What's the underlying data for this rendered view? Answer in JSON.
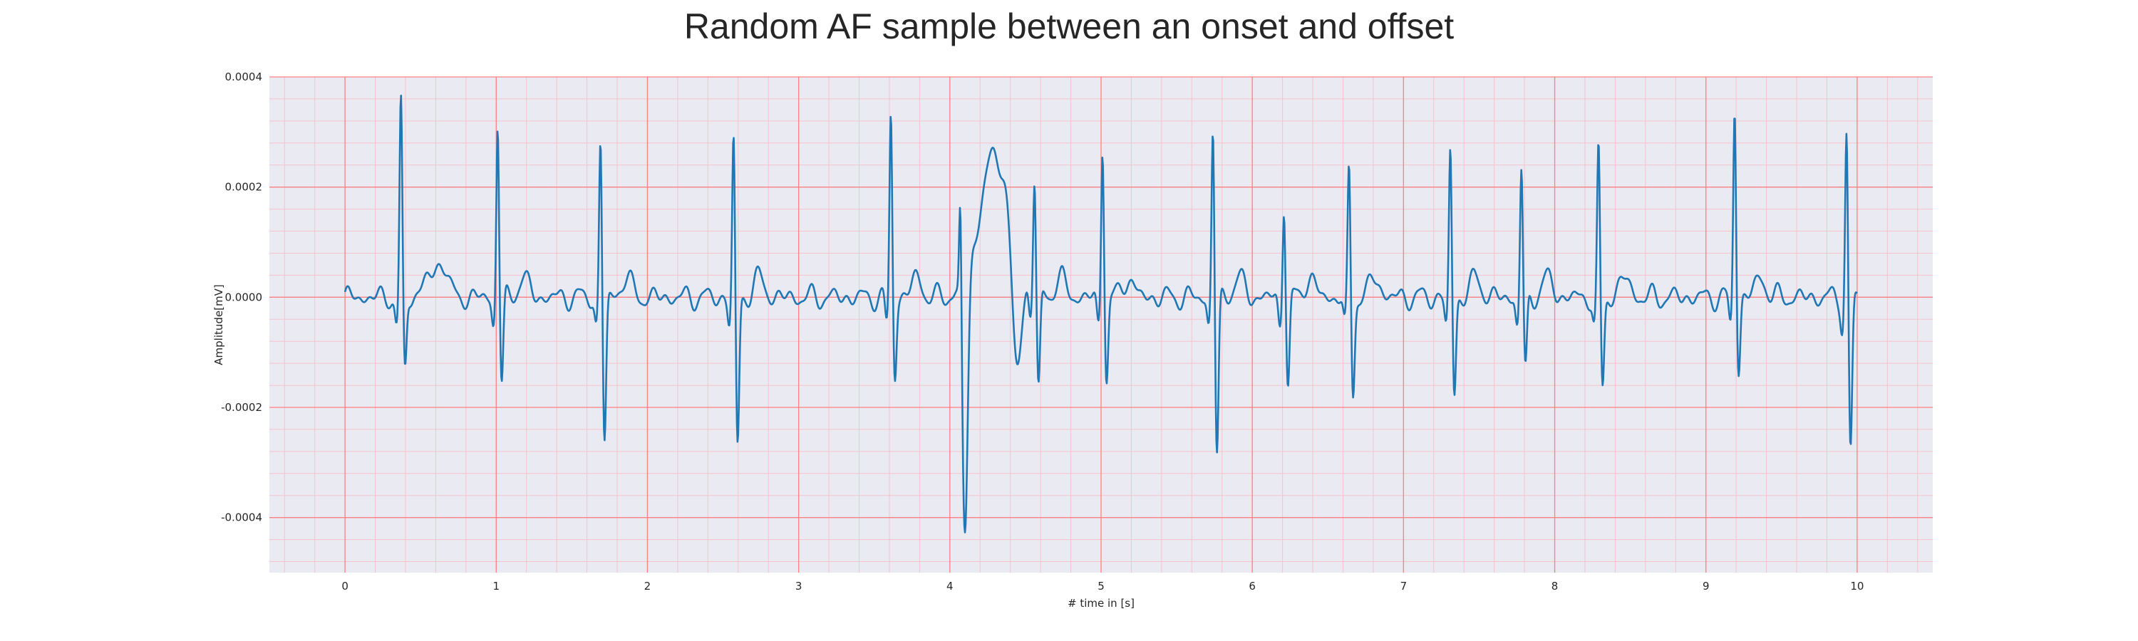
{
  "chart_data": {
    "type": "line",
    "title": "Random AF sample between an onset and offset",
    "xlabel": "# time in [s]",
    "ylabel": "Amplitude[mV]",
    "xlim": [
      -0.5,
      10.5
    ],
    "ylim": [
      -0.0005,
      0.0004
    ],
    "x_ticks": [
      0,
      1,
      2,
      3,
      4,
      5,
      6,
      7,
      8,
      9,
      10
    ],
    "x_tick_labels": [
      "0",
      "1",
      "2",
      "3",
      "4",
      "5",
      "6",
      "7",
      "8",
      "9",
      "10"
    ],
    "y_ticks": [
      -0.0004,
      -0.0002,
      0.0,
      0.0002,
      0.0004
    ],
    "y_tick_labels": [
      "-0.0004",
      "-0.0002",
      "0.0000",
      "0.0002",
      "0.0004"
    ],
    "grid": true,
    "minor_grid": true,
    "colors": {
      "line": "#1f77b4",
      "background": "#eaeaf2",
      "major_grid": "#ff8080",
      "minor_grid": "#f7c2cc"
    },
    "beats": [
      {
        "t": 0.37,
        "r": 0.00036,
        "s": -0.00014
      },
      {
        "t": 1.01,
        "r": 0.000325,
        "s": -0.00016
      },
      {
        "t": 1.69,
        "r": 0.000295,
        "s": -0.000265
      },
      {
        "t": 2.57,
        "r": 0.0003,
        "s": -0.000275
      },
      {
        "t": 3.61,
        "r": 0.00034,
        "s": -0.000145
      },
      {
        "t": 4.56,
        "r": 0.000215,
        "s": -0.000175
      },
      {
        "t": 5.01,
        "r": 0.000285,
        "s": -0.00015
      },
      {
        "t": 5.74,
        "r": 0.00032,
        "s": -0.00029
      },
      {
        "t": 6.21,
        "r": 0.00018,
        "s": -0.000165
      },
      {
        "t": 6.64,
        "r": 0.00024,
        "s": -0.000175
      },
      {
        "t": 7.31,
        "r": 0.000275,
        "s": -0.00018
      },
      {
        "t": 7.78,
        "r": 0.00024,
        "s": -0.00014
      },
      {
        "t": 8.29,
        "r": 0.000275,
        "s": -0.00017
      },
      {
        "t": 9.19,
        "r": 0.000355,
        "s": -0.000135
      },
      {
        "t": 9.93,
        "r": 0.00031,
        "s": -0.000285
      }
    ],
    "ectopic_beat": {
      "t_r": 4.07,
      "r": 0.000235,
      "t_s": 4.1,
      "s": -0.00046
    }
  }
}
